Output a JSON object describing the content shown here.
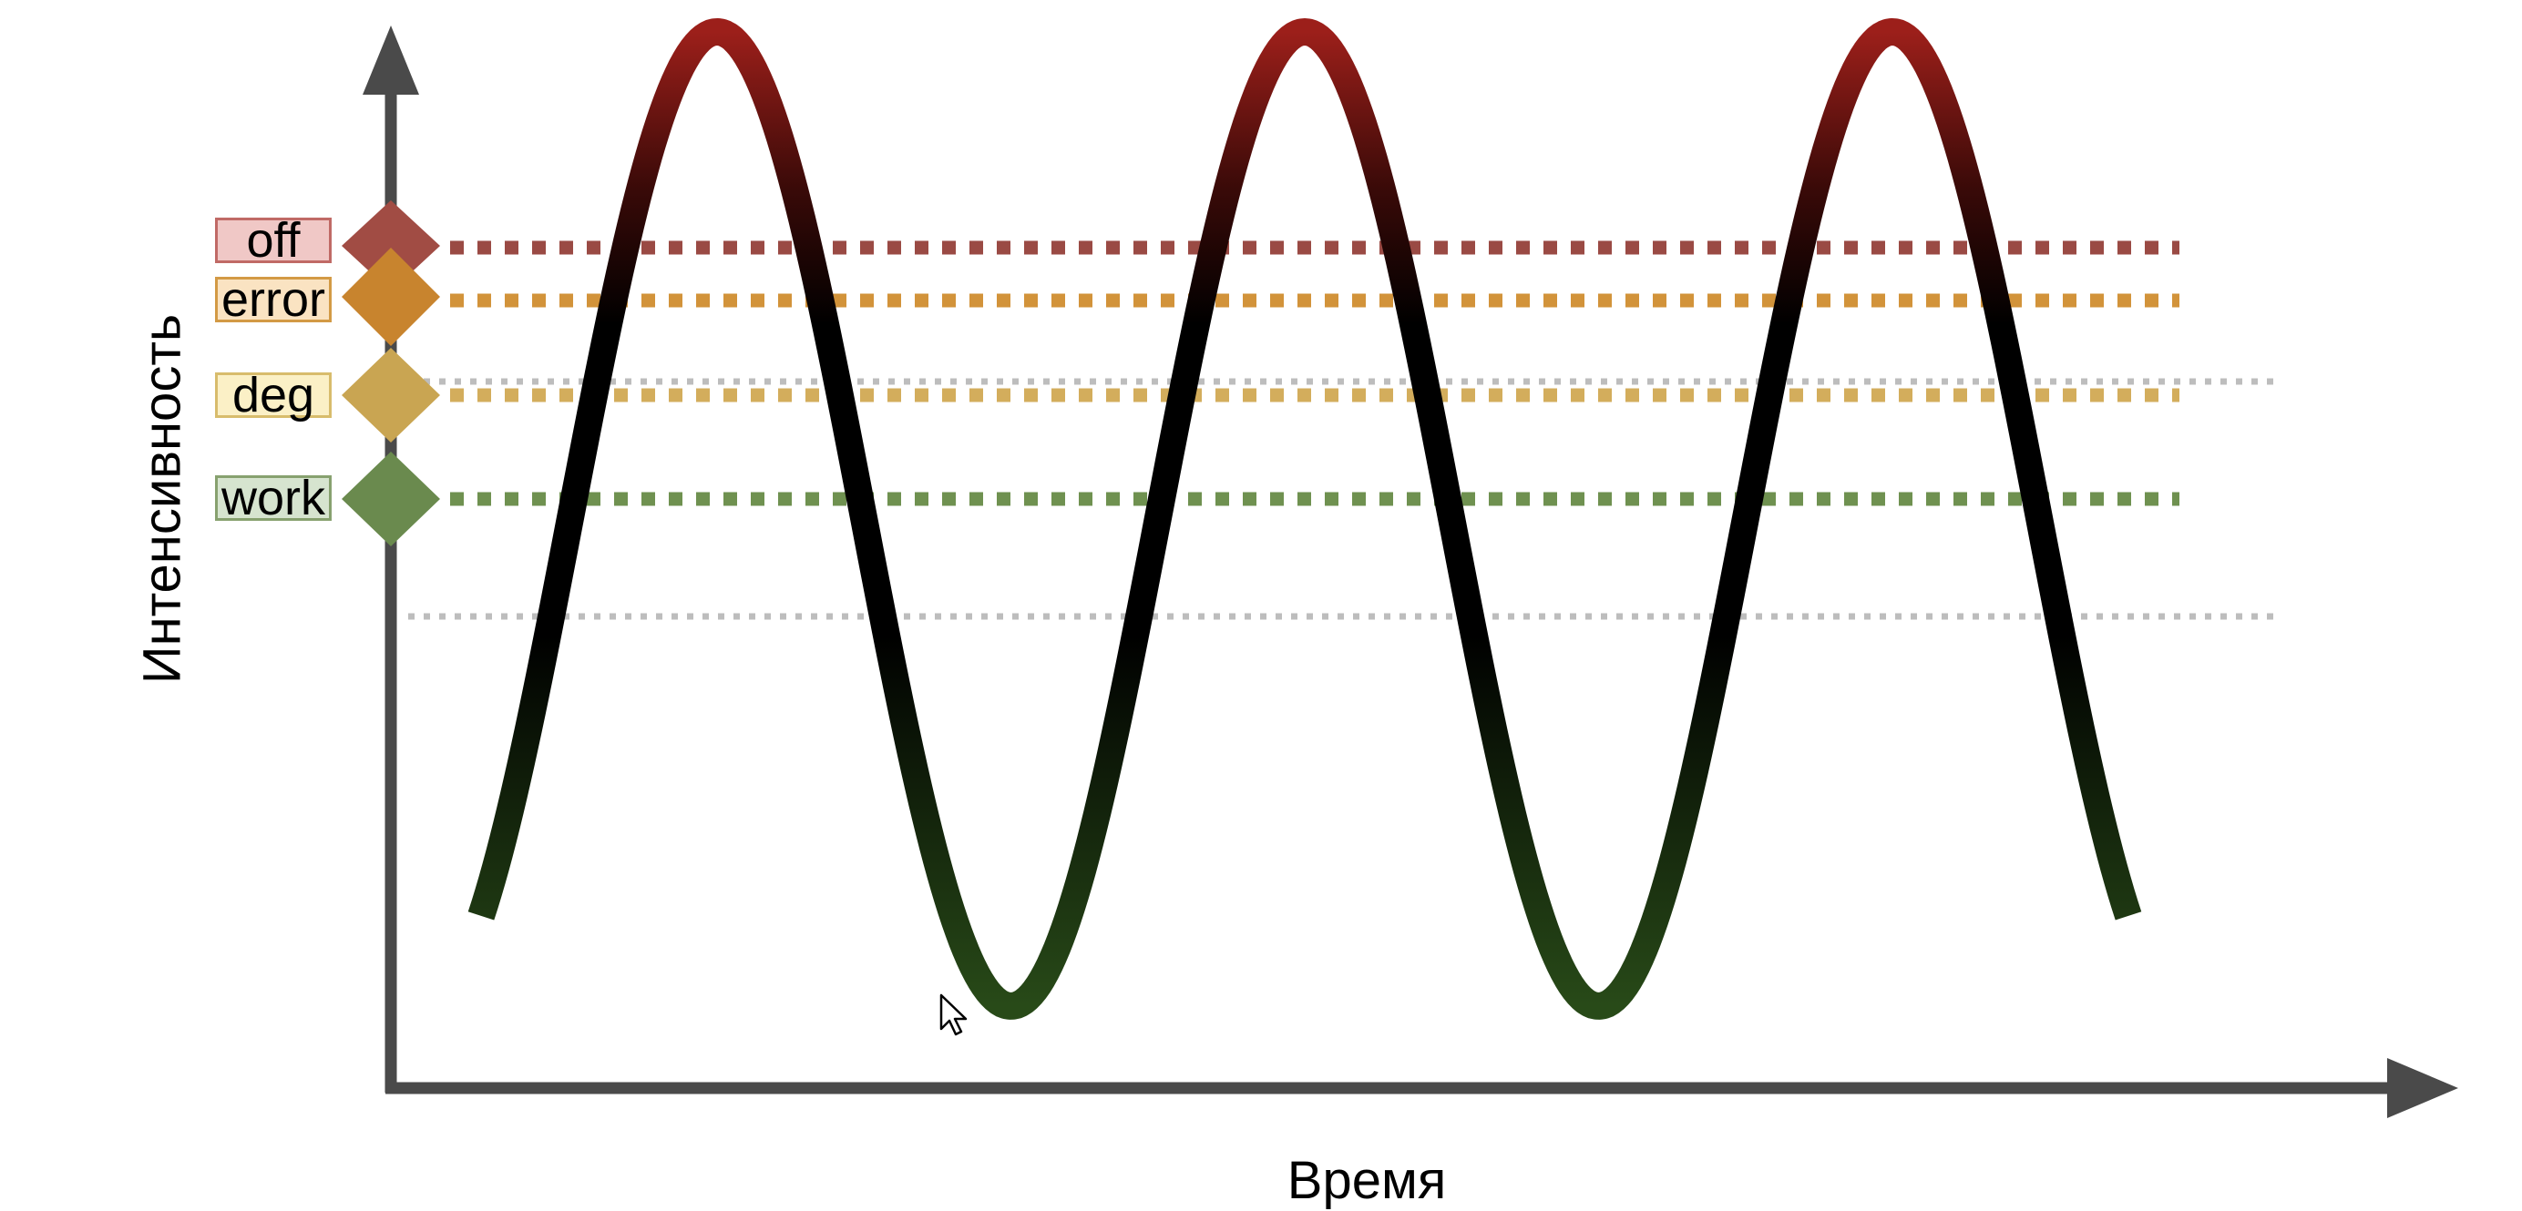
{
  "axes": {
    "x_label": "Время",
    "y_label": "Интенсивность"
  },
  "thresholds": [
    {
      "id": "off",
      "label": "off",
      "line_color": "#9a4a44",
      "diamond_color": "#a14c44",
      "label_bg": "#f0c8c6",
      "label_border": "#c06a66"
    },
    {
      "id": "error",
      "label": "error",
      "line_color": "#d2933a",
      "diamond_color": "#c8842e",
      "label_bg": "#fae3c2",
      "label_border": "#d39a45"
    },
    {
      "id": "deg",
      "label": "deg",
      "line_color": "#d3ad5c",
      "diamond_color": "#c9a552",
      "label_bg": "#fbf0c6",
      "label_border": "#d8bc6c"
    },
    {
      "id": "work",
      "label": "work",
      "line_color": "#6f9150",
      "diamond_color": "#6a8a4e",
      "label_bg": "#d6e4cf",
      "label_border": "#87a16f"
    }
  ],
  "extra_lines_color": "#bdbdbd",
  "wave": {
    "peaks": 3,
    "troughs": 2,
    "top_color": "#9c1f1a",
    "mid_color": "#000000",
    "bottom_color": "#284a18"
  },
  "axis_color": "#4a4a4a"
}
